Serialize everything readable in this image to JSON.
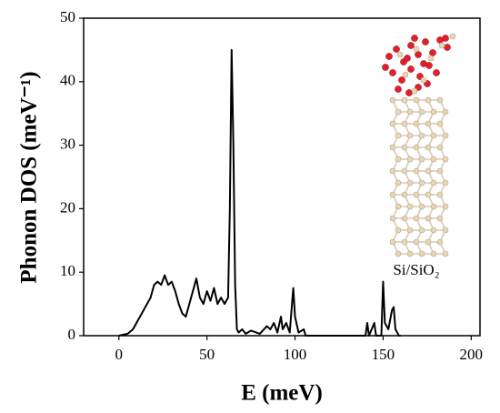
{
  "chart_data": {
    "type": "line",
    "xlabel": "E (meV)",
    "ylabel": "Phonon DOS (meV⁻¹)",
    "annotation": "Si/SiO₂",
    "color": "#000000",
    "x": [
      0,
      5,
      8,
      10,
      12,
      15,
      18,
      20,
      22,
      24,
      26,
      28,
      30,
      32,
      34,
      36,
      38,
      40,
      42,
      44,
      46,
      48,
      50,
      52,
      54,
      56,
      58,
      60,
      62,
      63,
      64,
      65,
      66,
      67,
      68,
      70,
      72,
      75,
      80,
      84,
      86,
      88,
      90,
      92,
      93,
      95,
      97,
      99,
      100,
      102,
      105,
      106,
      140,
      141,
      142,
      145,
      146,
      149,
      150,
      151,
      153,
      155,
      156,
      157,
      159,
      160
    ],
    "values": [
      0,
      0.3,
      1,
      2,
      3,
      4.5,
      6,
      8,
      8.5,
      8,
      9.5,
      8,
      8.5,
      7,
      5,
      3.5,
      3,
      5,
      7,
      9,
      6,
      5,
      7,
      5.5,
      7.5,
      5,
      6,
      5,
      6,
      20,
      45,
      30,
      8,
      1,
      0.5,
      1,
      0.3,
      0.8,
      0.3,
      1.5,
      1,
      2,
      0.5,
      3,
      1,
      2,
      0.5,
      7.5,
      3,
      0.5,
      1,
      0,
      0,
      2,
      0,
      2,
      0,
      0,
      8.5,
      2,
      1,
      4,
      4.5,
      1,
      0,
      0
    ],
    "xlim": [
      -20,
      205
    ],
    "xticks": [
      0,
      50,
      100,
      150,
      200
    ],
    "ylim": [
      0,
      50
    ],
    "yticks": [
      0,
      10,
      20,
      30,
      40,
      50
    ]
  }
}
